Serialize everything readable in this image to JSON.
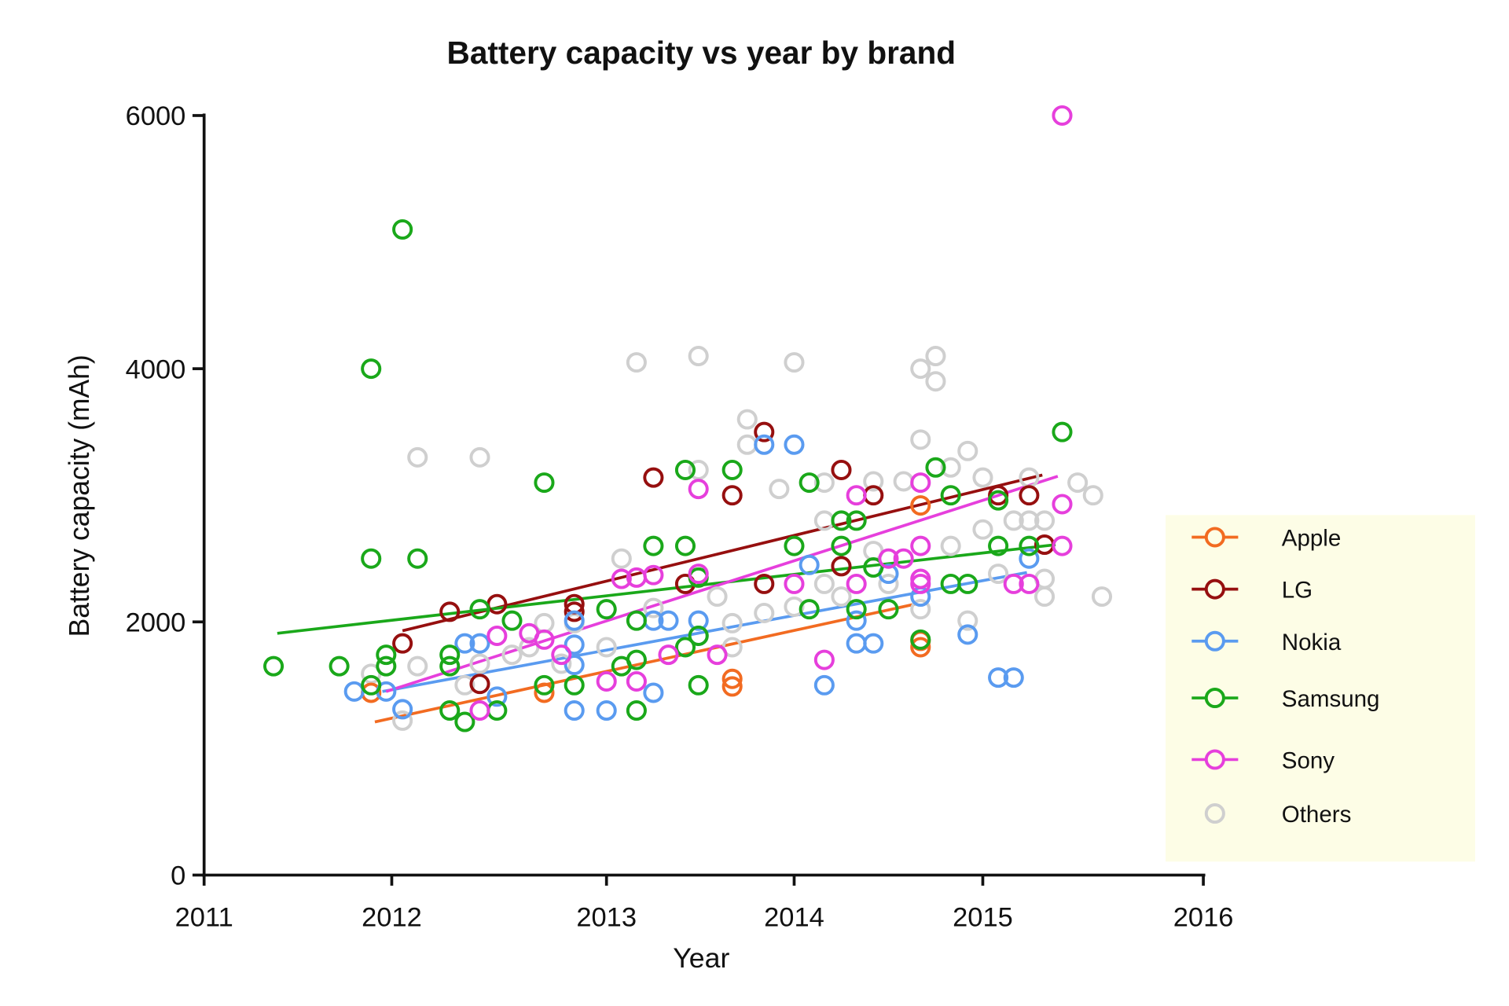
{
  "chart_data": {
    "type": "scatter",
    "title": "Battery capacity vs year by brand",
    "xlabel": "Year",
    "ylabel": "Battery capacity (mAh)",
    "xlim": [
      2011,
      2016
    ],
    "ylim": [
      0,
      6000
    ],
    "x_ticks": [
      "2011",
      "2012",
      "2013",
      "2014",
      "2015",
      "2016"
    ],
    "y_ticks": [
      "0",
      "2000",
      "4000",
      "6000"
    ],
    "grid": false,
    "legend_placement": "right",
    "legend_background": "#fdfde6",
    "series": [
      {
        "name": "Apple",
        "color": "#f26b21",
        "points": [
          [
            2011.89,
            1440
          ],
          [
            2012.71,
            1440
          ],
          [
            2013.67,
            1550
          ],
          [
            2013.67,
            1490
          ],
          [
            2014.67,
            2920
          ],
          [
            2014.67,
            1850
          ],
          [
            2014.67,
            1800
          ]
        ],
        "trend": [
          [
            2011.91,
            1210
          ],
          [
            2014.64,
            2140
          ]
        ]
      },
      {
        "name": "LG",
        "color": "#960f0f",
        "points": [
          [
            2012.05,
            1830
          ],
          [
            2012.27,
            2080
          ],
          [
            2012.41,
            1510
          ],
          [
            2012.49,
            2140
          ],
          [
            2012.85,
            2140
          ],
          [
            2012.85,
            2080
          ],
          [
            2013.25,
            3140
          ],
          [
            2013.42,
            2300
          ],
          [
            2013.67,
            3000
          ],
          [
            2013.84,
            3500
          ],
          [
            2013.84,
            2300
          ],
          [
            2014.25,
            3200
          ],
          [
            2014.25,
            2440
          ],
          [
            2014.42,
            3000
          ],
          [
            2015.07,
            3000
          ],
          [
            2015.21,
            3000
          ],
          [
            2015.28,
            2610
          ]
        ],
        "trend": [
          [
            2012.05,
            1930
          ],
          [
            2015.27,
            3160
          ]
        ]
      },
      {
        "name": "Nokia",
        "color": "#5a9bf0",
        "points": [
          [
            2011.8,
            1450
          ],
          [
            2011.97,
            1450
          ],
          [
            2012.05,
            1310
          ],
          [
            2012.34,
            1830
          ],
          [
            2012.41,
            1830
          ],
          [
            2012.49,
            1410
          ],
          [
            2012.85,
            2010
          ],
          [
            2012.85,
            1820
          ],
          [
            2012.85,
            1660
          ],
          [
            2012.85,
            1300
          ],
          [
            2013.0,
            1300
          ],
          [
            2013.25,
            2010
          ],
          [
            2013.25,
            1440
          ],
          [
            2013.33,
            2010
          ],
          [
            2013.49,
            2010
          ],
          [
            2013.49,
            1890
          ],
          [
            2013.84,
            3400
          ],
          [
            2014.0,
            3400
          ],
          [
            2014.08,
            2450
          ],
          [
            2014.16,
            1500
          ],
          [
            2014.33,
            2010
          ],
          [
            2014.33,
            1830
          ],
          [
            2014.42,
            1830
          ],
          [
            2014.5,
            2380
          ],
          [
            2014.67,
            2200
          ],
          [
            2014.92,
            1900
          ],
          [
            2015.07,
            1560
          ],
          [
            2015.14,
            1560
          ],
          [
            2015.21,
            2500
          ]
        ],
        "trend": [
          [
            2011.95,
            1450
          ],
          [
            2015.2,
            2390
          ]
        ]
      },
      {
        "name": "Samsung",
        "color": "#1aa81a",
        "points": [
          [
            2011.37,
            1650
          ],
          [
            2011.72,
            1650
          ],
          [
            2011.89,
            4000
          ],
          [
            2011.89,
            2500
          ],
          [
            2011.89,
            1500
          ],
          [
            2011.97,
            1740
          ],
          [
            2011.97,
            1650
          ],
          [
            2012.05,
            5100
          ],
          [
            2012.12,
            2500
          ],
          [
            2012.27,
            1740
          ],
          [
            2012.27,
            1650
          ],
          [
            2012.27,
            1300
          ],
          [
            2012.34,
            1210
          ],
          [
            2012.41,
            2100
          ],
          [
            2012.49,
            1300
          ],
          [
            2012.56,
            2010
          ],
          [
            2012.71,
            3100
          ],
          [
            2012.71,
            1500
          ],
          [
            2012.85,
            1500
          ],
          [
            2013.0,
            2100
          ],
          [
            2013.08,
            1650
          ],
          [
            2013.16,
            1700
          ],
          [
            2013.16,
            2010
          ],
          [
            2013.16,
            1300
          ],
          [
            2013.25,
            2600
          ],
          [
            2013.42,
            2600
          ],
          [
            2013.42,
            3200
          ],
          [
            2013.42,
            1800
          ],
          [
            2013.49,
            2350
          ],
          [
            2013.49,
            1500
          ],
          [
            2013.49,
            1890
          ],
          [
            2013.67,
            3200
          ],
          [
            2014.0,
            2600
          ],
          [
            2014.08,
            3100
          ],
          [
            2014.08,
            2100
          ],
          [
            2014.25,
            2800
          ],
          [
            2014.25,
            2600
          ],
          [
            2014.33,
            2800
          ],
          [
            2014.33,
            2100
          ],
          [
            2014.42,
            2430
          ],
          [
            2014.5,
            2100
          ],
          [
            2014.67,
            1860
          ],
          [
            2014.75,
            3220
          ],
          [
            2014.83,
            3000
          ],
          [
            2014.83,
            2300
          ],
          [
            2014.92,
            2300
          ],
          [
            2015.07,
            2960
          ],
          [
            2015.07,
            2600
          ],
          [
            2015.21,
            2600
          ],
          [
            2015.36,
            3500
          ]
        ],
        "trend": [
          [
            2011.39,
            1910
          ],
          [
            2015.33,
            2610
          ]
        ]
      },
      {
        "name": "Sony",
        "color": "#e63fdc",
        "points": [
          [
            2012.41,
            1300
          ],
          [
            2012.49,
            1890
          ],
          [
            2012.64,
            1910
          ],
          [
            2012.71,
            1860
          ],
          [
            2012.79,
            1740
          ],
          [
            2013.0,
            1530
          ],
          [
            2013.08,
            2340
          ],
          [
            2013.16,
            1530
          ],
          [
            2013.16,
            2350
          ],
          [
            2013.25,
            2370
          ],
          [
            2013.33,
            1740
          ],
          [
            2013.49,
            3050
          ],
          [
            2013.49,
            2380
          ],
          [
            2013.59,
            1740
          ],
          [
            2014.0,
            2300
          ],
          [
            2014.16,
            1700
          ],
          [
            2014.33,
            3000
          ],
          [
            2014.33,
            2300
          ],
          [
            2014.5,
            2500
          ],
          [
            2014.58,
            2500
          ],
          [
            2014.67,
            3100
          ],
          [
            2014.67,
            2600
          ],
          [
            2014.67,
            2340
          ],
          [
            2014.67,
            2300
          ],
          [
            2015.14,
            2300
          ],
          [
            2015.21,
            2300
          ],
          [
            2015.36,
            2930
          ],
          [
            2015.36,
            2600
          ],
          [
            2015.36,
            6000
          ]
        ],
        "trend": [
          [
            2011.97,
            1450
          ],
          [
            2015.34,
            3150
          ]
        ]
      },
      {
        "name": "Others",
        "color": "#cfcfcf",
        "points": [
          [
            2011.89,
            1590
          ],
          [
            2012.05,
            1220
          ],
          [
            2012.12,
            3300
          ],
          [
            2012.12,
            1650
          ],
          [
            2012.34,
            1500
          ],
          [
            2012.41,
            3300
          ],
          [
            2012.41,
            1670
          ],
          [
            2012.56,
            1740
          ],
          [
            2012.64,
            1800
          ],
          [
            2012.71,
            1990
          ],
          [
            2012.79,
            1670
          ],
          [
            2012.85,
            1990
          ],
          [
            2013.0,
            1800
          ],
          [
            2013.08,
            2500
          ],
          [
            2013.16,
            4050
          ],
          [
            2013.25,
            2110
          ],
          [
            2013.49,
            4100
          ],
          [
            2013.49,
            3200
          ],
          [
            2013.59,
            2200
          ],
          [
            2013.67,
            1990
          ],
          [
            2013.67,
            1800
          ],
          [
            2013.75,
            3600
          ],
          [
            2013.75,
            3400
          ],
          [
            2013.84,
            2070
          ],
          [
            2013.92,
            3050
          ],
          [
            2014.0,
            4050
          ],
          [
            2014.0,
            2120
          ],
          [
            2014.16,
            3100
          ],
          [
            2014.16,
            2800
          ],
          [
            2014.16,
            2300
          ],
          [
            2014.25,
            2200
          ],
          [
            2014.42,
            3110
          ],
          [
            2014.42,
            2560
          ],
          [
            2014.5,
            2300
          ],
          [
            2014.58,
            3110
          ],
          [
            2014.67,
            4000
          ],
          [
            2014.67,
            3440
          ],
          [
            2014.67,
            2100
          ],
          [
            2014.75,
            4100
          ],
          [
            2014.75,
            3900
          ],
          [
            2014.83,
            3220
          ],
          [
            2014.83,
            2600
          ],
          [
            2014.92,
            3350
          ],
          [
            2014.92,
            2010
          ],
          [
            2015.0,
            3140
          ],
          [
            2015.0,
            2730
          ],
          [
            2015.07,
            2380
          ],
          [
            2015.14,
            2800
          ],
          [
            2015.21,
            3140
          ],
          [
            2015.21,
            2800
          ],
          [
            2015.28,
            2800
          ],
          [
            2015.28,
            2340
          ],
          [
            2015.28,
            2200
          ],
          [
            2015.43,
            3100
          ],
          [
            2015.5,
            3000
          ],
          [
            2015.54,
            2200
          ]
        ]
      }
    ]
  }
}
